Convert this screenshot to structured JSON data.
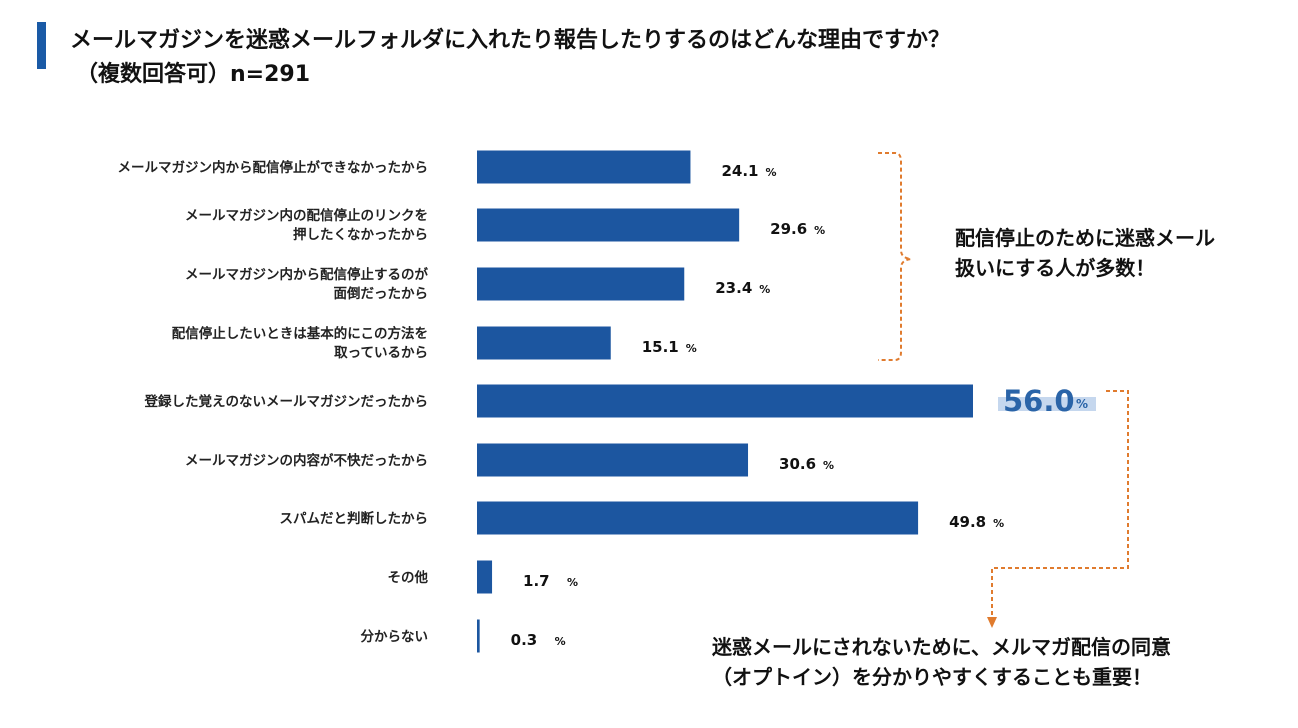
{
  "title": {
    "line1": "メールマガジンを迷惑メールフォルダに入れたり報告したりするのはどんな理由ですか？",
    "line2": "（複数回答可）n=291"
  },
  "chart_data": {
    "type": "bar",
    "orientation": "horizontal",
    "unit": "%",
    "xlim": [
      0,
      56
    ],
    "categories": [
      [
        "メールマガジン内から配信停止ができなかったから"
      ],
      [
        "メールマガジン内の配信停止のリンクを",
        "押したくなかったから"
      ],
      [
        "メールマガジン内から配信停止するのが",
        "面倒だったから"
      ],
      [
        "配信停止したいときは基本的にこの方法を",
        "取っているから"
      ],
      [
        "登録した覚えのないメールマガジンだったから"
      ],
      [
        "メールマガジンの内容が不快だったから"
      ],
      [
        "スパムだと判断したから"
      ],
      [
        "その他"
      ],
      [
        "分からない"
      ]
    ],
    "values": [
      24.1,
      29.6,
      23.4,
      15.1,
      56.0,
      30.6,
      49.8,
      1.7,
      0.3
    ],
    "highlight_index": 4,
    "bar_color": "#1c56a0",
    "highlight_color": "#2a64a8",
    "highlight_bg_color": "#c5d7ee",
    "bracket_color": "#e07b2e"
  },
  "callouts": {
    "group_note": [
      "配信停止のために迷惑メール",
      "扱いにする人が多数！"
    ],
    "bottom_note": [
      "迷惑メールにされないために、メルマガ配信の同意",
      "（オプトイン）を分かりやすくすることも重要！"
    ]
  }
}
